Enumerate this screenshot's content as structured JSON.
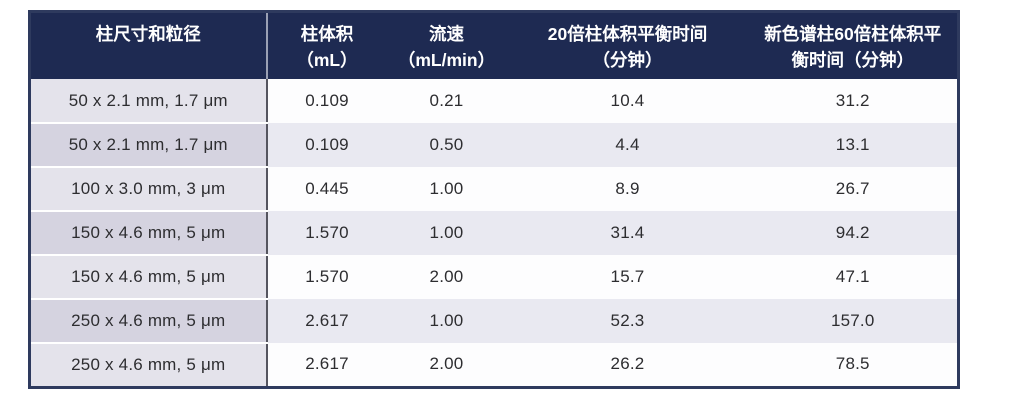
{
  "document": {
    "language": "zh-CN",
    "type": "data-table"
  },
  "colors": {
    "header_background": "#1e2a52",
    "header_text": "#ffffff",
    "outer_border": "#2e3a5e",
    "first_column_divider": "#55555f",
    "first_column_row_light": "#e4e3eb",
    "first_column_row_shaded": "#d5d3e0",
    "data_row_light": "#fdfdfe",
    "data_row_shaded": "#e9e9f1",
    "body_text": "#2d2d30"
  },
  "table": {
    "headers": [
      {
        "line1": "柱尺寸和粒径",
        "line2": ""
      },
      {
        "line1": "柱体积",
        "line2": "（mL）"
      },
      {
        "line1": "流速",
        "line2": "（mL/min）"
      },
      {
        "line1": "20倍柱体积平衡时间",
        "line2": "（分钟）"
      },
      {
        "line1": "新色谱柱60倍柱体积平",
        "line2": "衡时间（分钟）"
      }
    ],
    "rows": [
      [
        "50 x 2.1 mm, 1.7 μm",
        "0.109",
        "0.21",
        "10.4",
        "31.2"
      ],
      [
        "50 x 2.1 mm, 1.7 μm",
        "0.109",
        "0.50",
        "4.4",
        "13.1"
      ],
      [
        "100 x 3.0 mm, 3 μm",
        "0.445",
        "1.00",
        "8.9",
        "26.7"
      ],
      [
        "150 x 4.6 mm, 5 μm",
        "1.570",
        "1.00",
        "31.4",
        "94.2"
      ],
      [
        "150 x 4.6 mm, 5 μm",
        "1.570",
        "2.00",
        "15.7",
        "47.1"
      ],
      [
        "250 x 4.6 mm, 5 μm",
        "2.617",
        "1.00",
        "52.3",
        "157.0"
      ],
      [
        "250 x 4.6 mm, 5 μm",
        "2.617",
        "2.00",
        "26.2",
        "78.5"
      ]
    ]
  }
}
